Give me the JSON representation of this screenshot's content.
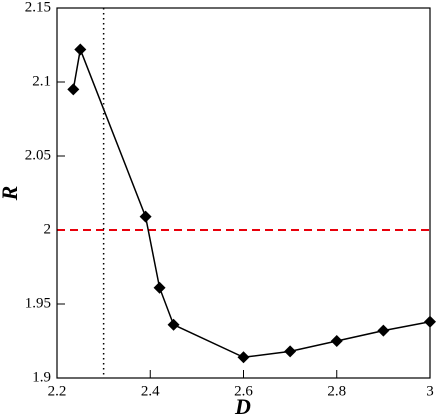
{
  "chart_data": {
    "type": "line",
    "x_label": "D",
    "y_label": "R",
    "series": [
      {
        "color": "#000000",
        "marker": "diamond",
        "x": [
          2.235,
          2.25,
          2.39,
          2.42,
          2.45,
          2.6,
          2.7,
          2.8,
          2.9,
          3.0
        ],
        "values": [
          2.095,
          2.122,
          2.009,
          1.961,
          1.936,
          1.914,
          1.918,
          1.925,
          1.932,
          1.938
        ]
      }
    ],
    "xlim": [
      2.2,
      3.0
    ],
    "xticks": [
      2.2,
      2.4,
      2.6,
      2.8,
      3
    ],
    "ylim": [
      1.9,
      2.15
    ],
    "yticks": [
      1.9,
      1.95,
      2,
      2.05,
      2.1,
      2.15
    ],
    "reference_lines": [
      {
        "axis": "y",
        "value": 2,
        "color": "#e8000b",
        "style": "dashed"
      },
      {
        "axis": "x",
        "value": 2.3,
        "color": "#000000",
        "style": "dotted"
      }
    ],
    "grid": false
  }
}
